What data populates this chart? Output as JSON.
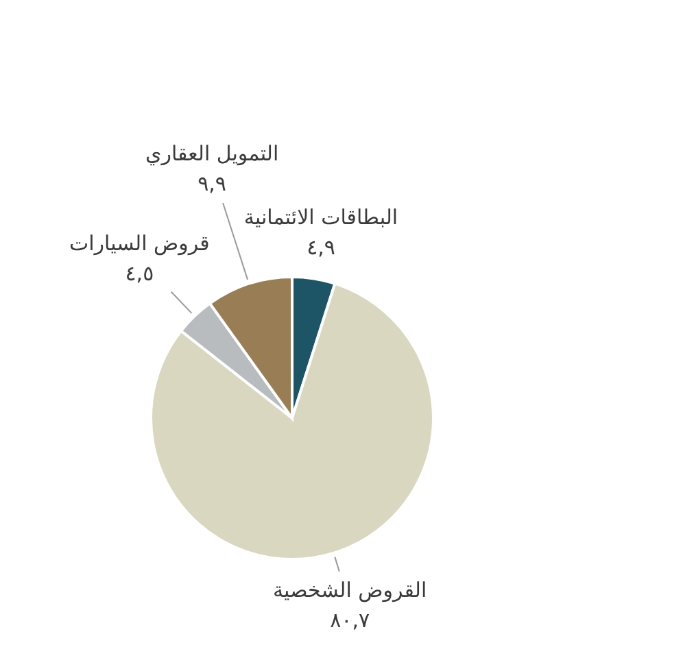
{
  "chart_data": {
    "type": "pie",
    "categories": [
      "البطاقات الائتمانية",
      "القروض الشخصية",
      "قروض السيارات",
      "التمويل العقاري"
    ],
    "values": [
      4.9,
      80.7,
      4.5,
      9.9
    ],
    "colors": [
      "#1e5566",
      "#dad7c1",
      "#b9bcbf",
      "#987d55"
    ],
    "value_labels": [
      "٤,٩",
      "٨٠,٧",
      "٤,٥",
      "٩,٩"
    ]
  }
}
